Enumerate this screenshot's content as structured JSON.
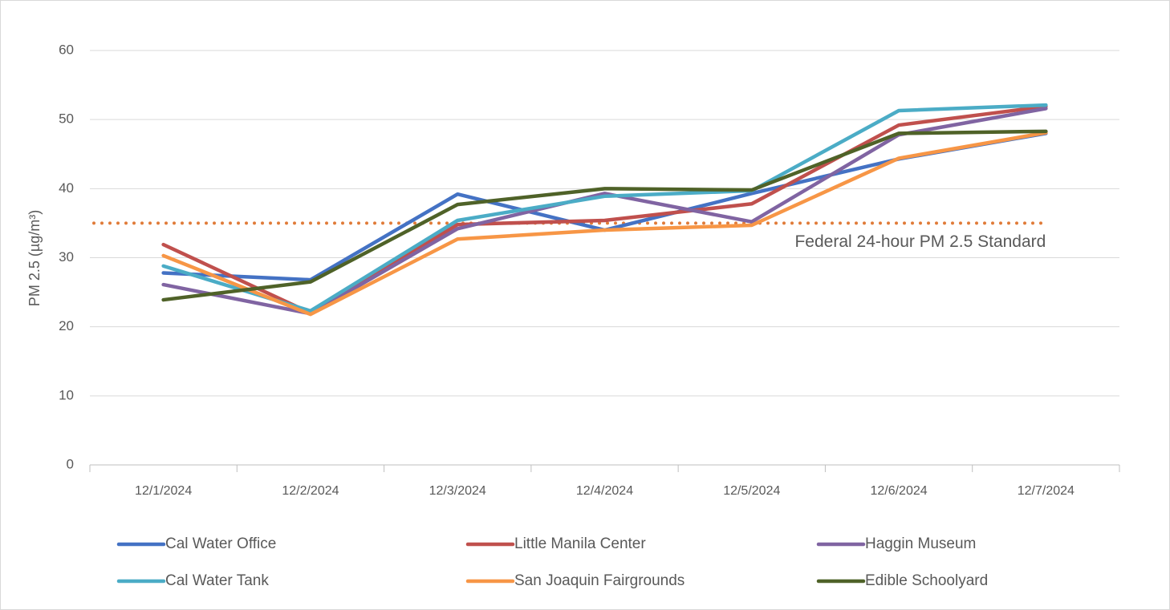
{
  "chart_data": {
    "type": "line",
    "y_label": "PM 2.5 (µg/m³)",
    "categories": [
      "12/1/2024",
      "12/2/2024",
      "12/3/2024",
      "12/4/2024",
      "12/5/2024",
      "12/6/2024",
      "12/7/2024"
    ],
    "series": [
      {
        "name": "Cal Water Office",
        "color": "#4472c4",
        "values": [
          27.8,
          26.8,
          39.2,
          34.0,
          39.3,
          44.3,
          48.0
        ]
      },
      {
        "name": "Little Manila Center",
        "color": "#c0504d",
        "values": [
          31.9,
          22.0,
          34.8,
          35.4,
          37.8,
          49.2,
          51.9
        ]
      },
      {
        "name": "Haggin Museum",
        "color": "#8064a2",
        "values": [
          26.1,
          21.9,
          34.2,
          39.3,
          35.2,
          47.8,
          51.6
        ]
      },
      {
        "name": "Cal Water Tank",
        "color": "#4bacc6",
        "values": [
          28.8,
          22.3,
          35.4,
          38.9,
          39.7,
          51.3,
          52.1
        ]
      },
      {
        "name": "San Joaquin Fairgrounds",
        "color": "#f79646",
        "values": [
          30.3,
          21.8,
          32.7,
          34.0,
          34.7,
          44.4,
          48.1
        ]
      },
      {
        "name": "Edible Schoolyard",
        "color": "#4f6228",
        "values": [
          23.9,
          26.5,
          37.7,
          40.0,
          39.8,
          48.0,
          48.3
        ]
      }
    ],
    "reference_line": {
      "label": "Federal 24-hour PM 2.5 Standard",
      "value": 35,
      "color": "#e07b39"
    },
    "ylim": [
      0,
      60
    ],
    "yticks": [
      0,
      10,
      20,
      30,
      40,
      50,
      60
    ],
    "grid": true,
    "legend": "bottom"
  }
}
